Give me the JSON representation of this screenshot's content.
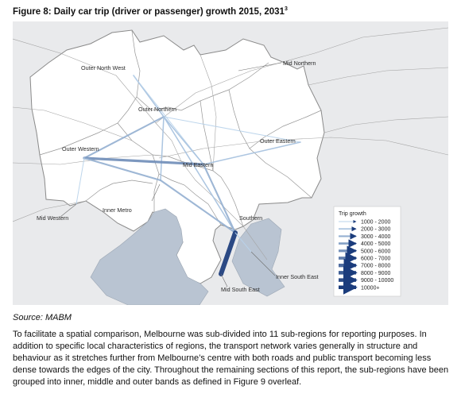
{
  "figure": {
    "title": "Figure 8: Daily car trip (driver or passenger) growth 2015, 2031",
    "title_superscript": "3",
    "source": "Source: MABM",
    "paragraph": "To facilitate a spatial comparison, Melbourne was sub-divided into 11 sub-regions for reporting purposes. In addition to specific local characteristics of regions, the transport network varies generally in structure and behaviour as it stretches further from Melbourne’s centre with both roads and public transport becoming less dense towards the edges of the city. Throughout the remaining sections of this report, the sub-regions have been grouped into inner, middle and outer bands as defined in Figure 9 overleaf."
  },
  "map": {
    "regions": [
      {
        "name": "Outer North West"
      },
      {
        "name": "Mid Northern"
      },
      {
        "name": "Outer Northern"
      },
      {
        "name": "Outer Eastern"
      },
      {
        "name": "Outer Western"
      },
      {
        "name": "Mid Eastern"
      },
      {
        "name": "Inner Metro"
      },
      {
        "name": "Mid Western"
      },
      {
        "name": "Southern"
      },
      {
        "name": "Inner South East"
      },
      {
        "name": "Mid South East"
      }
    ],
    "flows": [
      {
        "from": "Outer North West",
        "to": "Outer Northern",
        "class": "2000 - 3000"
      },
      {
        "from": "Outer North West",
        "to": "Mid Eastern",
        "class": "1000 - 2000"
      },
      {
        "from": "Outer Northern",
        "to": "Outer Western",
        "class": "3000 - 4000"
      },
      {
        "from": "Outer Northern",
        "to": "Mid Eastern",
        "class": "2000 - 3000"
      },
      {
        "from": "Outer Northern",
        "to": "Outer Eastern",
        "class": "1000 - 2000"
      },
      {
        "from": "Outer Northern",
        "to": "Inner Metro",
        "class": "2000 - 3000"
      },
      {
        "from": "Outer Northern",
        "to": "Southern",
        "class": "2000 - 3000"
      },
      {
        "from": "Outer Western",
        "to": "Mid Eastern",
        "class": "5000 - 6000"
      },
      {
        "from": "Outer Western",
        "to": "Inner Metro",
        "class": "3000 - 4000"
      },
      {
        "from": "Mid Eastern",
        "to": "Outer Eastern",
        "class": "2000 - 3000"
      },
      {
        "from": "Mid Eastern",
        "to": "Southern",
        "class": "3000 - 4000"
      },
      {
        "from": "Inner Metro",
        "to": "Southern",
        "class": "3000 - 4000"
      },
      {
        "from": "Southern",
        "to": "Mid South East",
        "class": "10000+"
      },
      {
        "from": "Southern",
        "to": "Inner South East",
        "class": "1000 - 2000"
      },
      {
        "from": "Mid Western",
        "to": "Outer Western",
        "class": "1000 - 2000"
      }
    ],
    "legend": {
      "title": "Trip growth",
      "classes": [
        "1000 - 2000",
        "2000 - 3000",
        "3000 - 4000",
        "4000 - 5000",
        "5000 - 6000",
        "6000 - 7000",
        "7000 - 8000",
        "8000 - 9000",
        "9000 - 10000",
        "10000+"
      ]
    },
    "colors": {
      "background": "#e9eaec",
      "land": "#ffffff",
      "bay": "#b9c4d2",
      "boundary": "#8f8f8f",
      "flow_light": "#b9d3eb",
      "flow_dark": "#1b3c7c"
    }
  }
}
